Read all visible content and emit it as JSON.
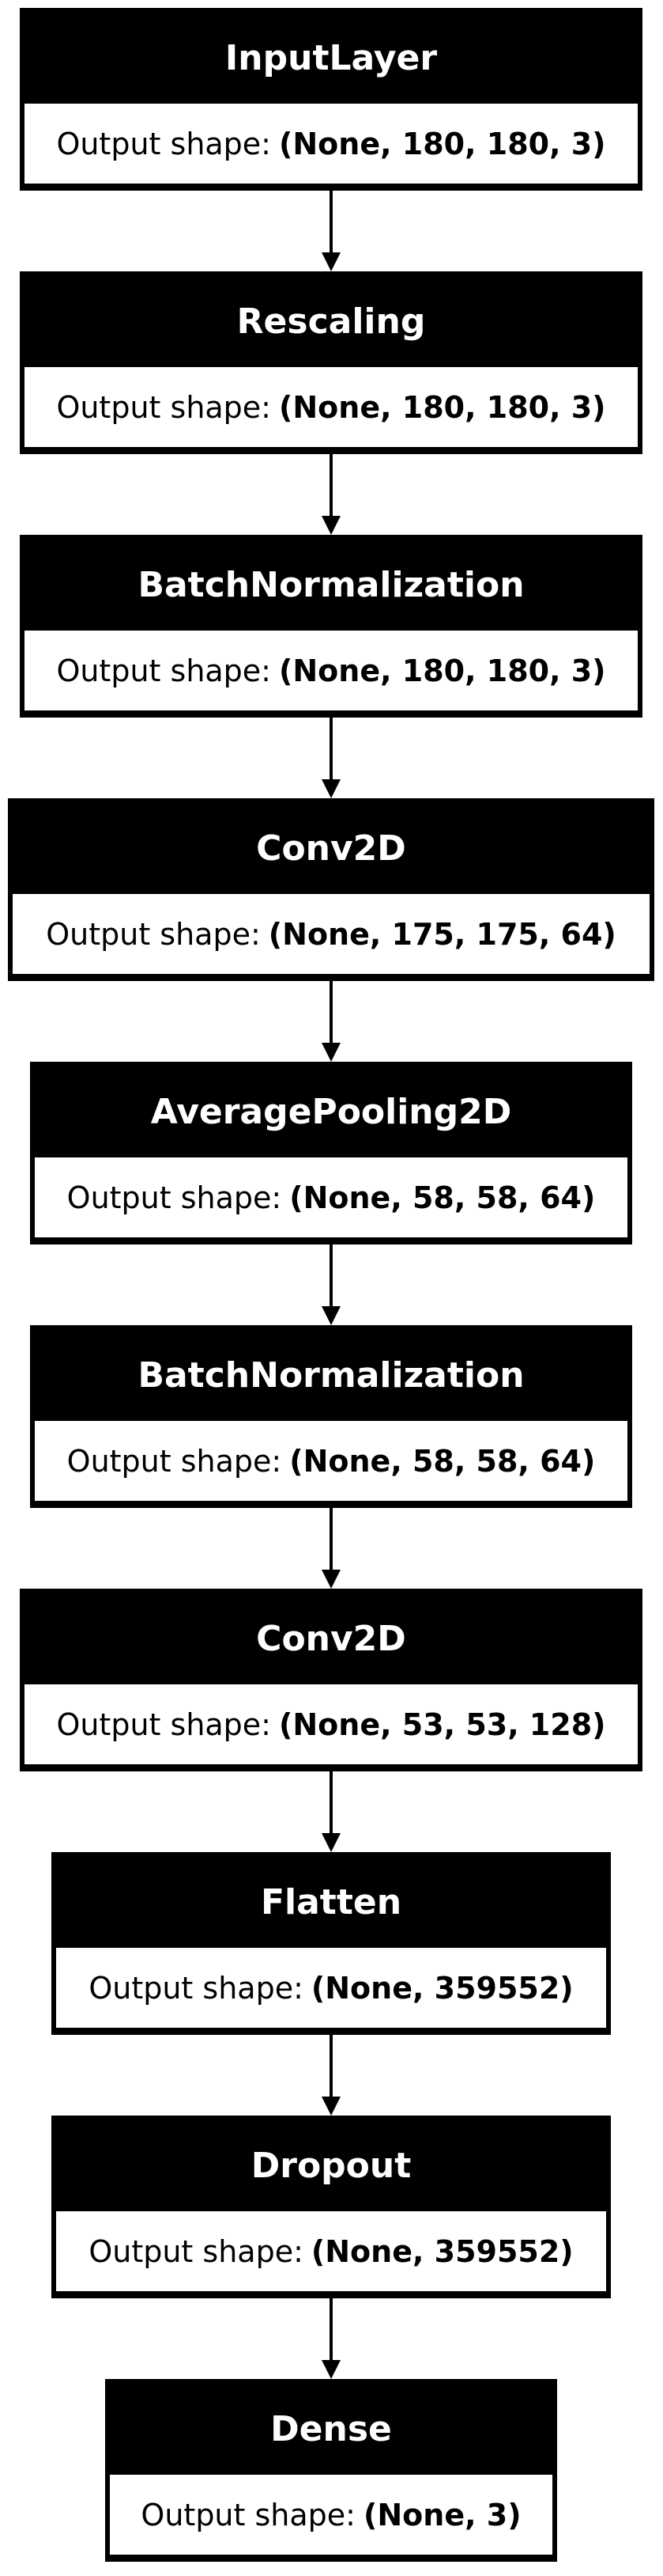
{
  "diagram": {
    "nodes": [
      {
        "title": "InputLayer",
        "label": "Output shape:",
        "shape": "(None, 180, 180, 3)"
      },
      {
        "title": "Rescaling",
        "label": "Output shape:",
        "shape": "(None, 180, 180, 3)"
      },
      {
        "title": "BatchNormalization",
        "label": "Output shape:",
        "shape": "(None, 180, 180, 3)"
      },
      {
        "title": "Conv2D",
        "label": "Output shape:",
        "shape": "(None, 175, 175, 64)"
      },
      {
        "title": "AveragePooling2D",
        "label": "Output shape:",
        "shape": "(None, 58, 58, 64)"
      },
      {
        "title": "BatchNormalization",
        "label": "Output shape:",
        "shape": "(None, 58, 58, 64)"
      },
      {
        "title": "Conv2D",
        "label": "Output shape:",
        "shape": "(None, 53, 53, 128)"
      },
      {
        "title": "Flatten",
        "label": "Output shape:",
        "shape": "(None, 359552)"
      },
      {
        "title": "Dropout",
        "label": "Output shape:",
        "shape": "(None, 359552)"
      },
      {
        "title": "Dense",
        "label": "Output shape:",
        "shape": "(None, 3)"
      }
    ]
  }
}
